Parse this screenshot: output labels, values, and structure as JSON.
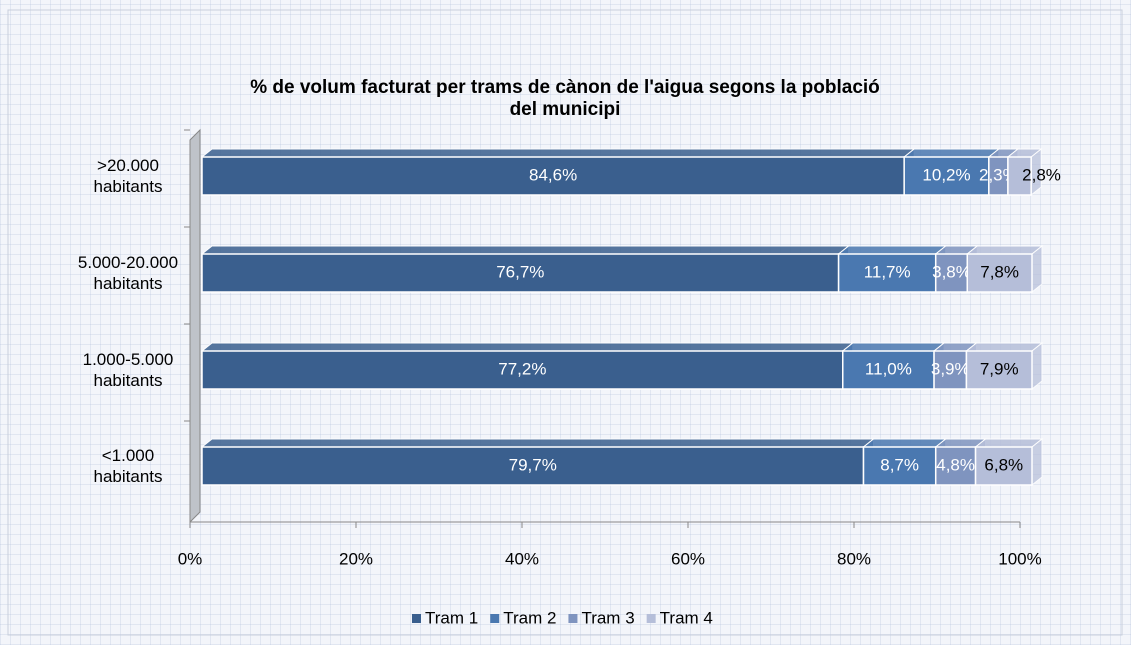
{
  "chart_data": {
    "type": "bar",
    "orientation": "horizontal",
    "stacked": true,
    "title": "% de volum facturat per trams de cànon de l'aigua segons la població del municipi",
    "categories": [
      ">20.000 habitants",
      "5.000-20.000 habitants",
      "1.000-5.000 habitants",
      "<1.000 habitants"
    ],
    "series": [
      {
        "name": "Tram 1",
        "color": "#3a5f8e",
        "values": [
          84.6,
          76.7,
          77.2,
          79.7
        ],
        "value_labels": [
          "84,6%",
          "76,7%",
          "77,2%",
          "79,7%"
        ]
      },
      {
        "name": "Tram 2",
        "color": "#4a78b0",
        "values": [
          10.2,
          11.7,
          11.0,
          8.7
        ],
        "value_labels": [
          "10,2%",
          "11,7%",
          "11,0%",
          "8,7%"
        ]
      },
      {
        "name": "Tram 3",
        "color": "#7f94bf",
        "values": [
          2.3,
          3.8,
          3.9,
          4.8
        ],
        "value_labels": [
          "2,3%",
          "3,8%",
          "3,9%",
          "4,8%"
        ]
      },
      {
        "name": "Tram 4",
        "color": "#b5bed9",
        "values": [
          2.8,
          7.8,
          7.9,
          6.8
        ],
        "value_labels": [
          "2,8%",
          "7,8%",
          "7,9%",
          "6,8%"
        ]
      }
    ],
    "xlim": [
      0,
      100
    ],
    "xticks": [
      {
        "value": 0,
        "label": "0%"
      },
      {
        "value": 20,
        "label": "20%"
      },
      {
        "value": 40,
        "label": "40%"
      },
      {
        "value": 60,
        "label": "60%"
      },
      {
        "value": 80,
        "label": "80%"
      },
      {
        "value": 100,
        "label": "100%"
      }
    ],
    "legend": "bottom"
  }
}
